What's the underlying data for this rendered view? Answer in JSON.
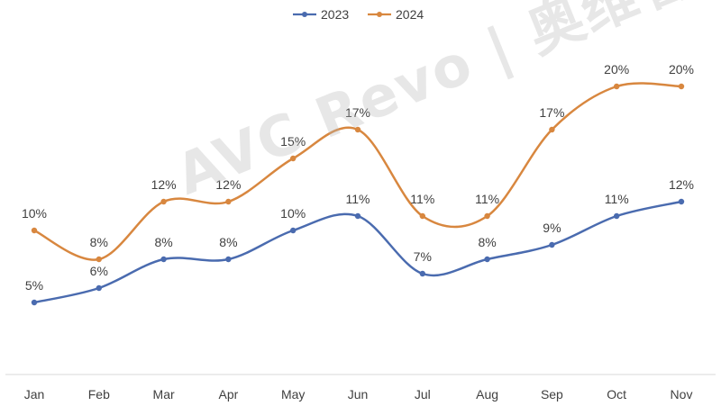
{
  "chart_data": {
    "type": "line",
    "categories": [
      "Jan",
      "Feb",
      "Mar",
      "Apr",
      "May",
      "Jun",
      "Jul",
      "Aug",
      "Sep",
      "Oct",
      "Nov"
    ],
    "series": [
      {
        "name": "2023",
        "color": "#4a6baf",
        "values": [
          5,
          6,
          8,
          8,
          10,
          11,
          7,
          8,
          9,
          11,
          12
        ],
        "labels": [
          "5%",
          "6%",
          "8%",
          "8%",
          "10%",
          "11%",
          "7%",
          "8%",
          "9%",
          "11%",
          "12%"
        ]
      },
      {
        "name": "2024",
        "color": "#d8873f",
        "values": [
          10,
          8,
          12,
          12,
          15,
          17,
          11,
          11,
          17,
          20,
          20
        ],
        "labels": [
          "10%",
          "8%",
          "12%",
          "12%",
          "15%",
          "17%",
          "11%",
          "11%",
          "17%",
          "20%",
          "20%"
        ]
      }
    ],
    "legend_position": "top-center",
    "grid": false,
    "smooth": true,
    "watermark": "AVC Revo | 奥维睿沃"
  }
}
